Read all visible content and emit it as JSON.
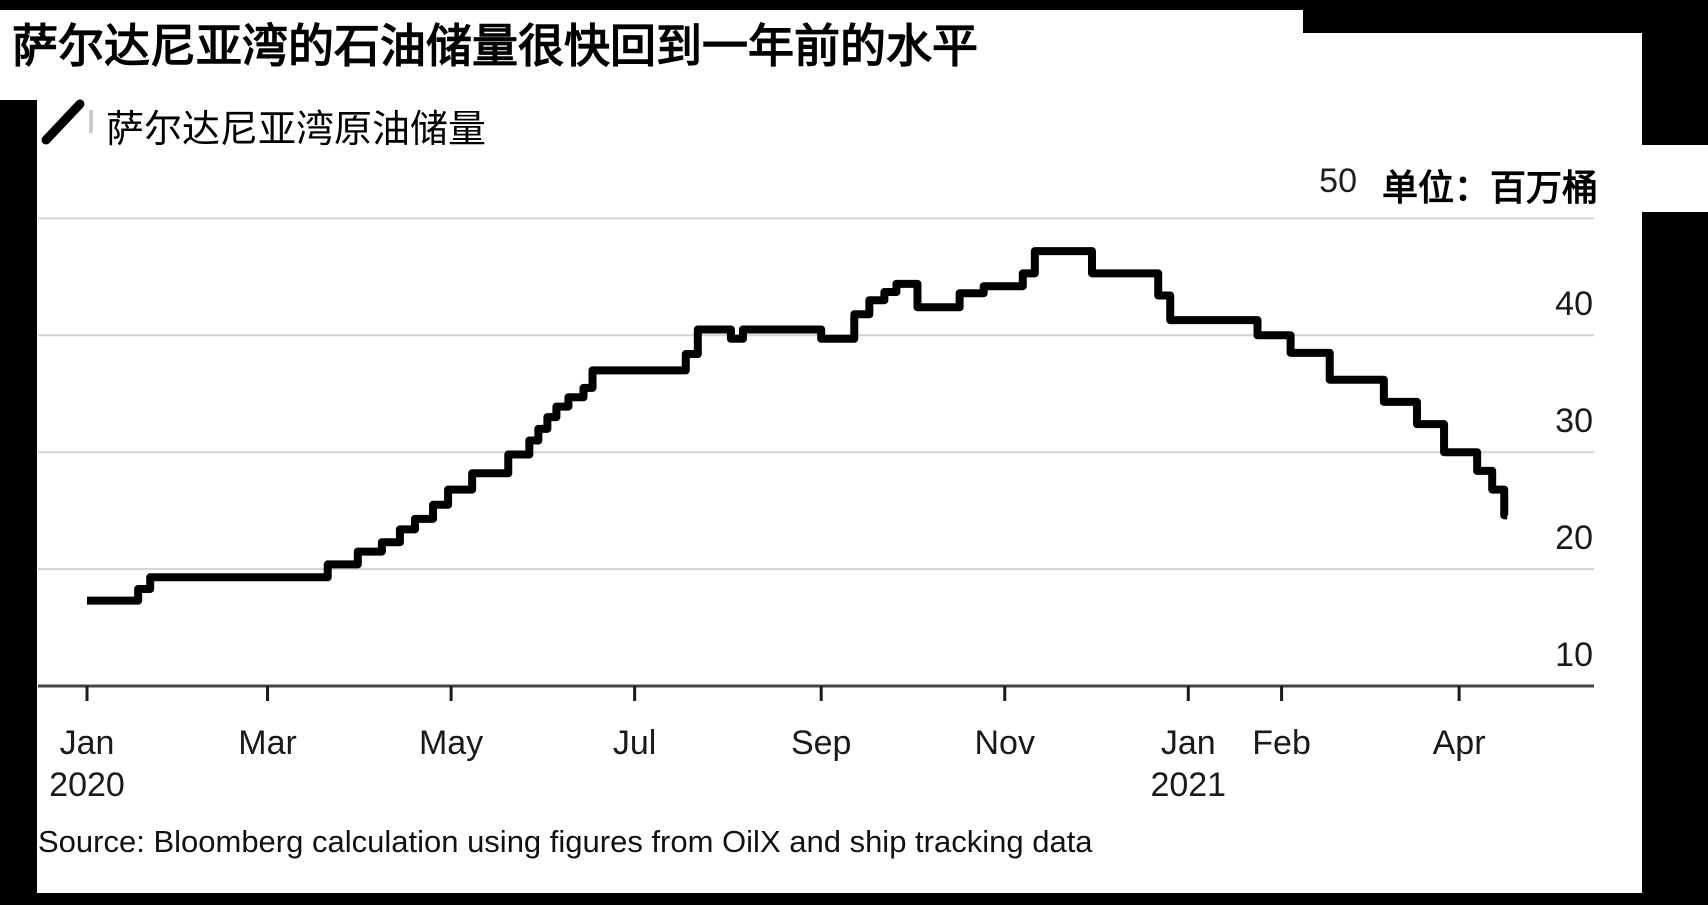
{
  "page": {
    "title": "萨尔达尼亚湾的石油储量很快回到一年前的水平",
    "legend": {
      "label": "萨尔达尼亚湾原油储量",
      "marker": "diagonal-line-swatch"
    },
    "top_axis": {
      "value": "50",
      "units_label": "单位：百万桶"
    },
    "source": "Source: Bloomberg calculation using figures from OilX and ship tracking data"
  },
  "colors": {
    "line": "#000000",
    "gridline": "#d2d2d2",
    "baseline": "#444444",
    "tick": "#1a1a1a",
    "frame_bars": "#000000",
    "label_text": "#1a1a1a"
  },
  "chart_data": {
    "type": "line",
    "style": "step-after",
    "title": "萨尔达尼亚湾的石油储量很快回到一年前的水平",
    "legend_entries": [
      "萨尔达尼亚湾原油储量"
    ],
    "units": "单位：百万桶",
    "ylabel": "",
    "xlabel": "",
    "ylim": [
      10,
      50
    ],
    "grid": "horizontal",
    "y_ticks": [
      {
        "value": 50,
        "label": "50",
        "position": "inline-with-units"
      },
      {
        "value": 40,
        "label": "40"
      },
      {
        "value": 30,
        "label": "30"
      },
      {
        "value": 20,
        "label": "20"
      },
      {
        "value": 10,
        "label": "10"
      }
    ],
    "x_ticks": [
      {
        "date": "2020-01-01",
        "label": "Jan",
        "year": "2020"
      },
      {
        "date": "2020-03-01",
        "label": "Mar"
      },
      {
        "date": "2020-05-01",
        "label": "May"
      },
      {
        "date": "2020-07-01",
        "label": "Jul"
      },
      {
        "date": "2020-09-01",
        "label": "Sep"
      },
      {
        "date": "2020-11-01",
        "label": "Nov"
      },
      {
        "date": "2021-01-01",
        "label": "Jan",
        "year": "2021"
      },
      {
        "date": "2021-02-01",
        "label": "Feb"
      },
      {
        "date": "2021-04-01",
        "label": "Apr"
      }
    ],
    "series": [
      {
        "name": "萨尔达尼亚湾原油储量",
        "end_date": "2021-04-17",
        "points": [
          {
            "d": "2020-01-01",
            "v": 17.3
          },
          {
            "d": "2020-01-18",
            "v": 18.3
          },
          {
            "d": "2020-01-22",
            "v": 19.3
          },
          {
            "d": "2020-03-21",
            "v": 20.4
          },
          {
            "d": "2020-03-31",
            "v": 21.5
          },
          {
            "d": "2020-04-08",
            "v": 22.3
          },
          {
            "d": "2020-04-14",
            "v": 23.4
          },
          {
            "d": "2020-04-19",
            "v": 24.3
          },
          {
            "d": "2020-04-25",
            "v": 25.5
          },
          {
            "d": "2020-04-30",
            "v": 26.8
          },
          {
            "d": "2020-05-08",
            "v": 28.2
          },
          {
            "d": "2020-05-20",
            "v": 29.8
          },
          {
            "d": "2020-05-27",
            "v": 31.0
          },
          {
            "d": "2020-05-30",
            "v": 32.0
          },
          {
            "d": "2020-06-02",
            "v": 33.0
          },
          {
            "d": "2020-06-05",
            "v": 33.9
          },
          {
            "d": "2020-06-09",
            "v": 34.7
          },
          {
            "d": "2020-06-14",
            "v": 35.5
          },
          {
            "d": "2020-06-17",
            "v": 37.0
          },
          {
            "d": "2020-07-18",
            "v": 38.4
          },
          {
            "d": "2020-07-22",
            "v": 40.5
          },
          {
            "d": "2020-08-02",
            "v": 39.7
          },
          {
            "d": "2020-08-06",
            "v": 40.5
          },
          {
            "d": "2020-09-01",
            "v": 39.7
          },
          {
            "d": "2020-09-12",
            "v": 41.8
          },
          {
            "d": "2020-09-17",
            "v": 43.0
          },
          {
            "d": "2020-09-22",
            "v": 43.7
          },
          {
            "d": "2020-09-26",
            "v": 44.4
          },
          {
            "d": "2020-10-03",
            "v": 42.4
          },
          {
            "d": "2020-10-17",
            "v": 43.6
          },
          {
            "d": "2020-10-25",
            "v": 44.2
          },
          {
            "d": "2020-11-07",
            "v": 45.3
          },
          {
            "d": "2020-11-11",
            "v": 47.2
          },
          {
            "d": "2020-11-30",
            "v": 45.3
          },
          {
            "d": "2020-12-22",
            "v": 43.4
          },
          {
            "d": "2020-12-26",
            "v": 41.3
          },
          {
            "d": "2021-01-24",
            "v": 40.0
          },
          {
            "d": "2021-02-04",
            "v": 38.5
          },
          {
            "d": "2021-02-17",
            "v": 36.2
          },
          {
            "d": "2021-03-07",
            "v": 34.3
          },
          {
            "d": "2021-03-18",
            "v": 32.4
          },
          {
            "d": "2021-03-27",
            "v": 30.0
          },
          {
            "d": "2021-04-07",
            "v": 28.4
          },
          {
            "d": "2021-04-12",
            "v": 26.8
          },
          {
            "d": "2021-04-16",
            "v": 24.6
          }
        ]
      }
    ]
  }
}
